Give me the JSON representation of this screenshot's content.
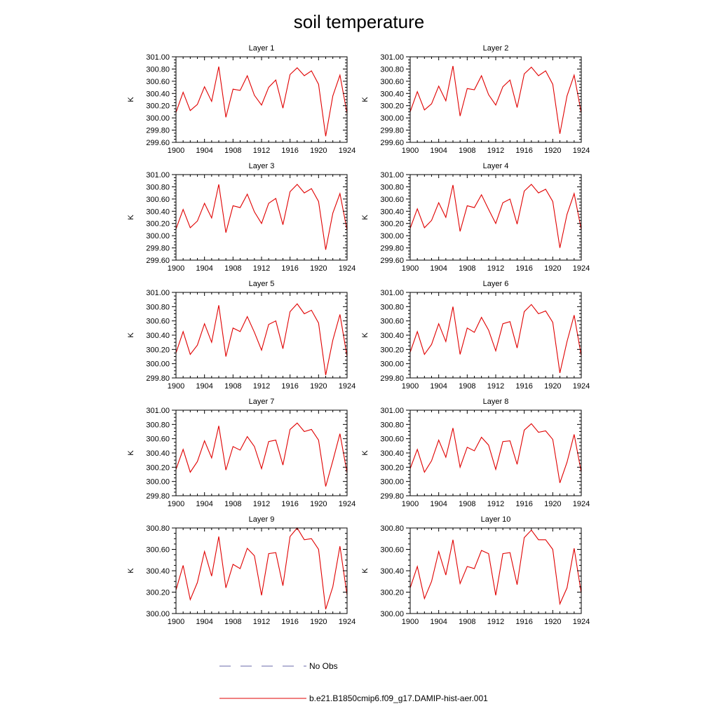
{
  "title": "soil temperature",
  "legend": {
    "items": [
      {
        "label": "No Obs",
        "color": "#6a6aa8",
        "style": "dashed"
      },
      {
        "label": "b.e21.B1850cmip6.f09_g17.DAMIP-hist-aer.001",
        "color": "#e00000",
        "style": "solid"
      }
    ]
  },
  "chart_data": [
    {
      "type": "line",
      "title": "Layer 1",
      "xlabel": "",
      "ylabel": "K",
      "xlim": [
        1900,
        1924
      ],
      "ylim": [
        299.6,
        301.0
      ],
      "xticks": [
        "1900",
        "1904",
        "1908",
        "1912",
        "1916",
        "1920",
        "1924"
      ],
      "yticks": [
        "299.60",
        "299.80",
        "300.00",
        "300.20",
        "300.40",
        "300.60",
        "300.80",
        "301.00"
      ],
      "x": [
        1900,
        1901,
        1902,
        1903,
        1904,
        1905,
        1906,
        1907,
        1908,
        1909,
        1910,
        1911,
        1912,
        1913,
        1914,
        1915,
        1916,
        1917,
        1918,
        1919,
        1920,
        1921,
        1922,
        1923,
        1924
      ],
      "series": [
        {
          "values": [
            300.09,
            300.42,
            300.12,
            300.22,
            300.51,
            300.27,
            300.84,
            300.01,
            300.47,
            300.45,
            300.69,
            300.37,
            300.21,
            300.5,
            300.62,
            300.16,
            300.71,
            300.82,
            300.69,
            300.77,
            300.55,
            299.7,
            300.36,
            300.7,
            300.07
          ],
          "color": "#e00000"
        }
      ]
    },
    {
      "type": "line",
      "title": "Layer 2",
      "xlabel": "",
      "ylabel": "K",
      "xlim": [
        1900,
        1924
      ],
      "ylim": [
        299.6,
        301.0
      ],
      "xticks": [
        "1900",
        "1904",
        "1908",
        "1912",
        "1916",
        "1920",
        "1924"
      ],
      "yticks": [
        "299.60",
        "299.80",
        "300.00",
        "300.20",
        "300.40",
        "300.60",
        "300.80",
        "301.00"
      ],
      "x": [
        1900,
        1901,
        1902,
        1903,
        1904,
        1905,
        1906,
        1907,
        1908,
        1909,
        1910,
        1911,
        1912,
        1913,
        1914,
        1915,
        1916,
        1917,
        1918,
        1919,
        1920,
        1921,
        1922,
        1923,
        1924
      ],
      "series": [
        {
          "values": [
            300.1,
            300.43,
            300.13,
            300.23,
            300.52,
            300.28,
            300.85,
            300.03,
            300.48,
            300.46,
            300.69,
            300.38,
            300.21,
            300.51,
            300.62,
            300.17,
            300.72,
            300.83,
            300.69,
            300.77,
            300.55,
            299.74,
            300.36,
            300.7,
            300.08
          ],
          "color": "#e00000"
        }
      ]
    },
    {
      "type": "line",
      "title": "Layer 3",
      "xlabel": "",
      "ylabel": "K",
      "xlim": [
        1900,
        1924
      ],
      "ylim": [
        299.6,
        301.0
      ],
      "xticks": [
        "1900",
        "1904",
        "1908",
        "1912",
        "1916",
        "1920",
        "1924"
      ],
      "yticks": [
        "299.60",
        "299.80",
        "300.00",
        "300.20",
        "300.40",
        "300.60",
        "300.80",
        "301.00"
      ],
      "x": [
        1900,
        1901,
        1902,
        1903,
        1904,
        1905,
        1906,
        1907,
        1908,
        1909,
        1910,
        1911,
        1912,
        1913,
        1914,
        1915,
        1916,
        1917,
        1918,
        1919,
        1920,
        1921,
        1922,
        1923,
        1924
      ],
      "series": [
        {
          "values": [
            300.11,
            300.43,
            300.13,
            300.24,
            300.53,
            300.29,
            300.84,
            300.05,
            300.49,
            300.46,
            300.68,
            300.39,
            300.2,
            300.53,
            300.61,
            300.18,
            300.72,
            300.84,
            300.7,
            300.77,
            300.56,
            299.77,
            300.37,
            300.69,
            300.09
          ],
          "color": "#e00000"
        }
      ]
    },
    {
      "type": "line",
      "title": "Layer 4",
      "xlabel": "",
      "ylabel": "K",
      "xlim": [
        1900,
        1924
      ],
      "ylim": [
        299.6,
        301.0
      ],
      "xticks": [
        "1900",
        "1904",
        "1908",
        "1912",
        "1916",
        "1920",
        "1924"
      ],
      "yticks": [
        "299.60",
        "299.80",
        "300.00",
        "300.20",
        "300.40",
        "300.60",
        "300.80",
        "301.00"
      ],
      "x": [
        1900,
        1901,
        1902,
        1903,
        1904,
        1905,
        1906,
        1907,
        1908,
        1909,
        1910,
        1911,
        1912,
        1913,
        1914,
        1915,
        1916,
        1917,
        1918,
        1919,
        1920,
        1921,
        1922,
        1923,
        1924
      ],
      "series": [
        {
          "values": [
            300.12,
            300.44,
            300.13,
            300.25,
            300.54,
            300.3,
            300.83,
            300.07,
            300.49,
            300.46,
            300.67,
            300.43,
            300.2,
            300.54,
            300.6,
            300.19,
            300.73,
            300.84,
            300.7,
            300.76,
            300.56,
            299.8,
            300.35,
            300.69,
            300.1
          ],
          "color": "#e00000"
        }
      ]
    },
    {
      "type": "line",
      "title": "Layer 5",
      "xlabel": "",
      "ylabel": "K",
      "xlim": [
        1900,
        1924
      ],
      "ylim": [
        299.8,
        301.0
      ],
      "xticks": [
        "1900",
        "1904",
        "1908",
        "1912",
        "1916",
        "1920",
        "1924"
      ],
      "yticks": [
        "299.80",
        "300.00",
        "300.20",
        "300.40",
        "300.60",
        "300.80",
        "301.00"
      ],
      "x": [
        1900,
        1901,
        1902,
        1903,
        1904,
        1905,
        1906,
        1907,
        1908,
        1909,
        1910,
        1911,
        1912,
        1913,
        1914,
        1915,
        1916,
        1917,
        1918,
        1919,
        1920,
        1921,
        1922,
        1923,
        1924
      ],
      "series": [
        {
          "values": [
            300.15,
            300.45,
            300.13,
            300.26,
            300.56,
            300.3,
            300.82,
            300.1,
            300.5,
            300.45,
            300.66,
            300.44,
            300.19,
            300.55,
            300.6,
            300.21,
            300.73,
            300.84,
            300.7,
            300.75,
            300.57,
            299.84,
            300.33,
            300.69,
            300.1
          ],
          "color": "#e00000"
        }
      ]
    },
    {
      "type": "line",
      "title": "Layer 6",
      "xlabel": "",
      "ylabel": "K",
      "xlim": [
        1900,
        1924
      ],
      "ylim": [
        299.8,
        301.0
      ],
      "xticks": [
        "1900",
        "1904",
        "1908",
        "1912",
        "1916",
        "1920",
        "1924"
      ],
      "yticks": [
        "299.80",
        "300.00",
        "300.20",
        "300.40",
        "300.60",
        "300.80",
        "301.00"
      ],
      "x": [
        1900,
        1901,
        1902,
        1903,
        1904,
        1905,
        1906,
        1907,
        1908,
        1909,
        1910,
        1911,
        1912,
        1913,
        1914,
        1915,
        1916,
        1917,
        1918,
        1919,
        1920,
        1921,
        1922,
        1923,
        1924
      ],
      "series": [
        {
          "values": [
            300.16,
            300.45,
            300.13,
            300.27,
            300.56,
            300.31,
            300.8,
            300.13,
            300.5,
            300.44,
            300.65,
            300.47,
            300.18,
            300.56,
            300.59,
            300.22,
            300.73,
            300.83,
            300.7,
            300.74,
            300.58,
            299.87,
            300.31,
            300.68,
            300.11
          ],
          "color": "#e00000"
        }
      ]
    },
    {
      "type": "line",
      "title": "Layer 7",
      "xlabel": "",
      "ylabel": "K",
      "xlim": [
        1900,
        1924
      ],
      "ylim": [
        299.8,
        301.0
      ],
      "xticks": [
        "1900",
        "1904",
        "1908",
        "1912",
        "1916",
        "1920",
        "1924"
      ],
      "yticks": [
        "299.80",
        "300.00",
        "300.20",
        "300.40",
        "300.60",
        "300.80",
        "301.00"
      ],
      "x": [
        1900,
        1901,
        1902,
        1903,
        1904,
        1905,
        1906,
        1907,
        1908,
        1909,
        1910,
        1911,
        1912,
        1913,
        1914,
        1915,
        1916,
        1917,
        1918,
        1919,
        1920,
        1921,
        1922,
        1923,
        1924
      ],
      "series": [
        {
          "values": [
            300.17,
            300.45,
            300.13,
            300.28,
            300.57,
            300.33,
            300.78,
            300.16,
            300.49,
            300.44,
            300.63,
            300.49,
            300.18,
            300.56,
            300.58,
            300.23,
            300.73,
            300.82,
            300.7,
            300.73,
            300.58,
            299.93,
            300.29,
            300.67,
            300.12
          ],
          "color": "#e00000"
        }
      ]
    },
    {
      "type": "line",
      "title": "Layer 8",
      "xlabel": "",
      "ylabel": "K",
      "xlim": [
        1900,
        1924
      ],
      "ylim": [
        299.8,
        301.0
      ],
      "xticks": [
        "1900",
        "1904",
        "1908",
        "1912",
        "1916",
        "1920",
        "1924"
      ],
      "yticks": [
        "299.80",
        "300.00",
        "300.20",
        "300.40",
        "300.60",
        "300.80",
        "301.00"
      ],
      "x": [
        1900,
        1901,
        1902,
        1903,
        1904,
        1905,
        1906,
        1907,
        1908,
        1909,
        1910,
        1911,
        1912,
        1913,
        1914,
        1915,
        1916,
        1917,
        1918,
        1919,
        1920,
        1921,
        1922,
        1923,
        1924
      ],
      "series": [
        {
          "values": [
            300.18,
            300.45,
            300.13,
            300.29,
            300.58,
            300.34,
            300.75,
            300.2,
            300.48,
            300.43,
            300.62,
            300.51,
            300.17,
            300.56,
            300.57,
            300.24,
            300.72,
            300.81,
            300.69,
            300.71,
            300.59,
            299.98,
            300.27,
            300.66,
            300.13
          ],
          "color": "#e00000"
        }
      ]
    },
    {
      "type": "line",
      "title": "Layer 9",
      "xlabel": "",
      "ylabel": "K",
      "xlim": [
        1900,
        1924
      ],
      "ylim": [
        300.0,
        300.8
      ],
      "xticks": [
        "1900",
        "1904",
        "1908",
        "1912",
        "1916",
        "1920",
        "1924"
      ],
      "yticks": [
        "300.00",
        "300.20",
        "300.40",
        "300.60",
        "300.80"
      ],
      "x": [
        1900,
        1901,
        1902,
        1903,
        1904,
        1905,
        1906,
        1907,
        1908,
        1909,
        1910,
        1911,
        1912,
        1913,
        1914,
        1915,
        1916,
        1917,
        1918,
        1919,
        1920,
        1921,
        1922,
        1923,
        1924
      ],
      "series": [
        {
          "values": [
            300.22,
            300.45,
            300.13,
            300.29,
            300.58,
            300.35,
            300.72,
            300.24,
            300.46,
            300.42,
            300.61,
            300.54,
            300.17,
            300.56,
            300.57,
            300.26,
            300.72,
            300.8,
            300.69,
            300.7,
            300.6,
            300.04,
            300.25,
            300.63,
            300.17
          ],
          "color": "#e00000"
        }
      ]
    },
    {
      "type": "line",
      "title": "Layer 10",
      "xlabel": "",
      "ylabel": "K",
      "xlim": [
        1900,
        1924
      ],
      "ylim": [
        300.0,
        300.8
      ],
      "xticks": [
        "1900",
        "1904",
        "1908",
        "1912",
        "1916",
        "1920",
        "1924"
      ],
      "yticks": [
        "300.00",
        "300.20",
        "300.40",
        "300.60",
        "300.80"
      ],
      "x": [
        1900,
        1901,
        1902,
        1903,
        1904,
        1905,
        1906,
        1907,
        1908,
        1909,
        1910,
        1911,
        1912,
        1913,
        1914,
        1915,
        1916,
        1917,
        1918,
        1919,
        1920,
        1921,
        1922,
        1923,
        1924
      ],
      "series": [
        {
          "values": [
            300.24,
            300.44,
            300.14,
            300.3,
            300.58,
            300.36,
            300.69,
            300.28,
            300.44,
            300.42,
            300.59,
            300.56,
            300.17,
            300.56,
            300.57,
            300.27,
            300.71,
            300.78,
            300.69,
            300.69,
            300.6,
            300.09,
            300.24,
            300.61,
            300.19
          ],
          "color": "#e00000"
        }
      ]
    }
  ]
}
